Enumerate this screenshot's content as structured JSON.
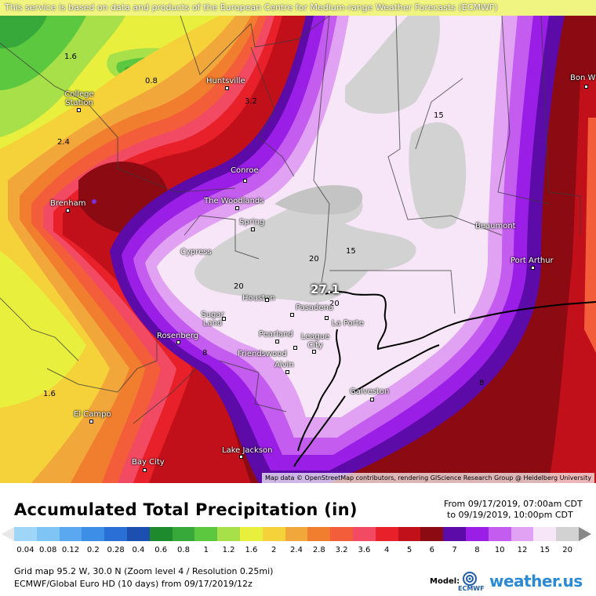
{
  "banner": "This service is based on data and products of the European Centre for Medium-range Weather Forecasts (ECMWF)",
  "attribution": "Map data © OpenStreetMap contributors, rendering GIScience Research Group @ Heidelberg University",
  "max_value": "27.1",
  "cities": [
    {
      "name": "College\nStation",
      "id": "college-station"
    },
    {
      "name": "Huntsville",
      "id": "huntsville"
    },
    {
      "name": "Bon W",
      "id": "bon-wier"
    },
    {
      "name": "Conroe",
      "id": "conroe"
    },
    {
      "name": "The Woodlands",
      "id": "the-woodlands"
    },
    {
      "name": "Spring",
      "id": "spring"
    },
    {
      "name": "Brenham",
      "id": "brenham"
    },
    {
      "name": "Cypress",
      "id": "cypress"
    },
    {
      "name": "Beaumont",
      "id": "beaumont"
    },
    {
      "name": "Port Arthur",
      "id": "port-arthur"
    },
    {
      "name": "Houston",
      "id": "houston"
    },
    {
      "name": "Pasadena",
      "id": "pasadena"
    },
    {
      "name": "La Porte",
      "id": "la-porte"
    },
    {
      "name": "Sugar\nLand",
      "id": "sugar-land"
    },
    {
      "name": "Rosenberg",
      "id": "rosenberg"
    },
    {
      "name": "Pearland",
      "id": "pearland"
    },
    {
      "name": "League\nCity",
      "id": "league-city"
    },
    {
      "name": "Friendswood",
      "id": "friendswood"
    },
    {
      "name": "Alvin",
      "id": "alvin"
    },
    {
      "name": "Galveston",
      "id": "galveston"
    },
    {
      "name": "El Campo",
      "id": "el-campo"
    },
    {
      "name": "Lake Jackson",
      "id": "lake-jackson"
    },
    {
      "name": "Bay City",
      "id": "bay-city"
    }
  ],
  "contour_labels": [
    "1.6",
    "0.8",
    "3.2",
    "2.4",
    "15",
    "20",
    "15",
    "20",
    "20",
    "1.6",
    "8",
    "8"
  ],
  "legend": {
    "title": "Accumulated Total Precipitation (in)",
    "from": "From 09/17/2019, 07:00am CDT",
    "to": "to 09/19/2019, 10:00pm CDT",
    "ticks": [
      "0.04",
      "0.08",
      "0.12",
      "0.2",
      "0.28",
      "0.4",
      "0.6",
      "0.8",
      "1",
      "1.2",
      "1.6",
      "2",
      "2.4",
      "2.8",
      "3.2",
      "3.6",
      "4",
      "5",
      "6",
      "7",
      "8",
      "10",
      "12",
      "15",
      "20"
    ],
    "colors": [
      "#9fd6f8",
      "#7ec4f5",
      "#5aa9f0",
      "#3d8ee6",
      "#2a6fd6",
      "#1d4fb0",
      "#1e8a2e",
      "#37a83a",
      "#5cc83f",
      "#a8e04a",
      "#e9ef3d",
      "#f5d23a",
      "#f2a73a",
      "#f07e2e",
      "#f45d3a",
      "#f24a62",
      "#e8202a",
      "#c2101a",
      "#8c0a12",
      "#5c0aa8",
      "#9a1ee6",
      "#c45cf0",
      "#e2a2f4",
      "#f6e6f8",
      "#d2d2d2"
    ],
    "grid_info": "Grid map 95.2 W, 30.0 N (Zoom level 4 / Resolution 0.25mi)",
    "model_info": "ECMWF/Global Euro HD (10 days) from 09/17/2019/12z",
    "model_label": "Model:",
    "ecmwf": "ECMWF",
    "brand": "weather.us"
  }
}
